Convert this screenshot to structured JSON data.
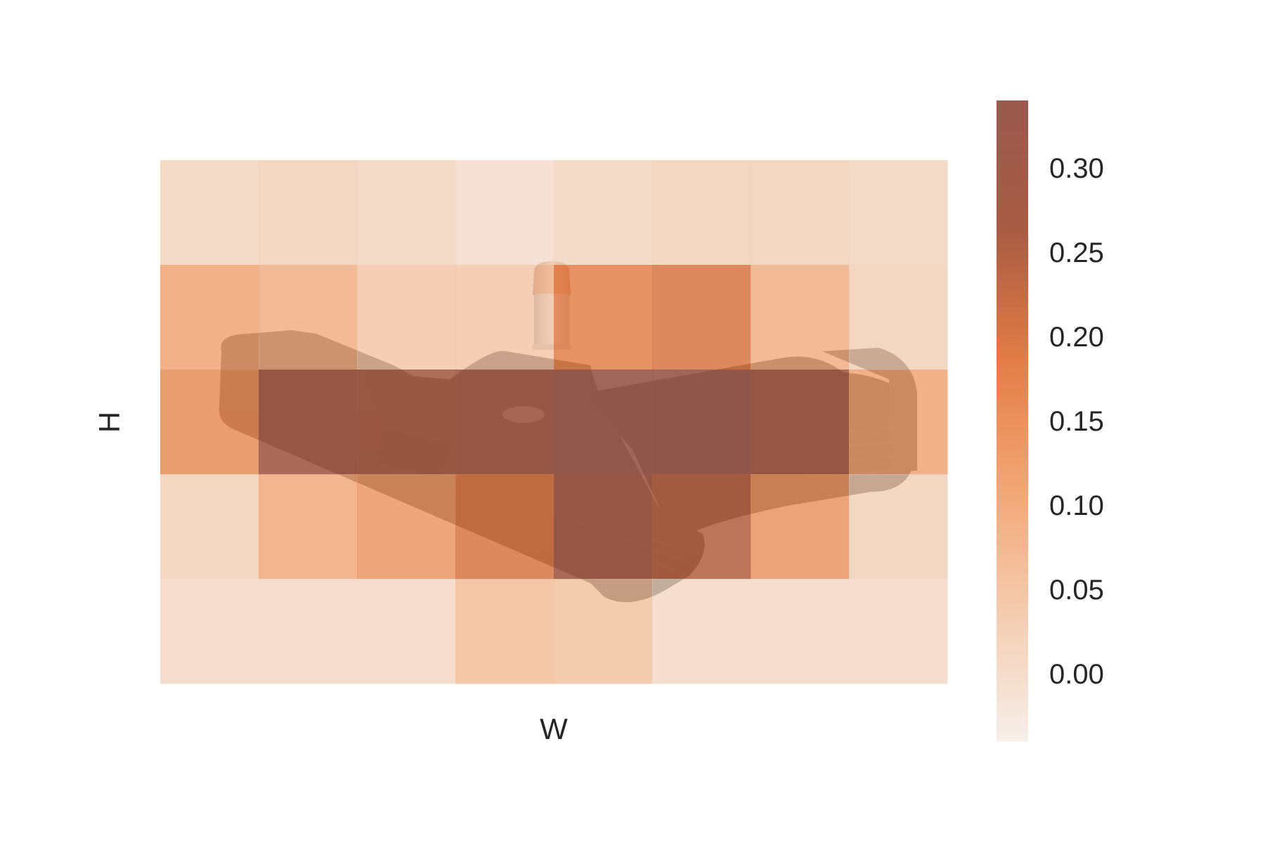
{
  "chart_data": {
    "type": "heatmap",
    "title": "",
    "xlabel": "W",
    "ylabel": "H",
    "grid": false,
    "legend": "colorbar-right",
    "background_image": "pistol-with-cartridge-photo",
    "rows": 5,
    "cols": 8,
    "values": [
      [
        0.02,
        0.03,
        0.02,
        0.0,
        0.02,
        0.03,
        0.03,
        0.02
      ],
      [
        0.12,
        0.1,
        0.05,
        0.05,
        0.18,
        0.2,
        0.1,
        0.03
      ],
      [
        0.16,
        0.3,
        0.28,
        0.3,
        0.34,
        0.38,
        0.29,
        0.12
      ],
      [
        0.03,
        0.11,
        0.14,
        0.2,
        0.3,
        0.25,
        0.15,
        0.03
      ],
      [
        0.01,
        0.01,
        0.01,
        0.07,
        0.06,
        0.01,
        0.01,
        0.01
      ]
    ],
    "colorbar": {
      "vmin": -0.04,
      "vmax": 0.34,
      "ticks": [
        "0.00",
        "0.05",
        "0.10",
        "0.15",
        "0.20",
        "0.25",
        "0.30"
      ],
      "tick_values": [
        0.0,
        0.05,
        0.1,
        0.15,
        0.2,
        0.25,
        0.3
      ],
      "color_stops": [
        "#f6efea",
        "#f4ccb0",
        "#f2a574",
        "#e27c46",
        "#a85c44",
        "#9a5a4e"
      ]
    }
  }
}
